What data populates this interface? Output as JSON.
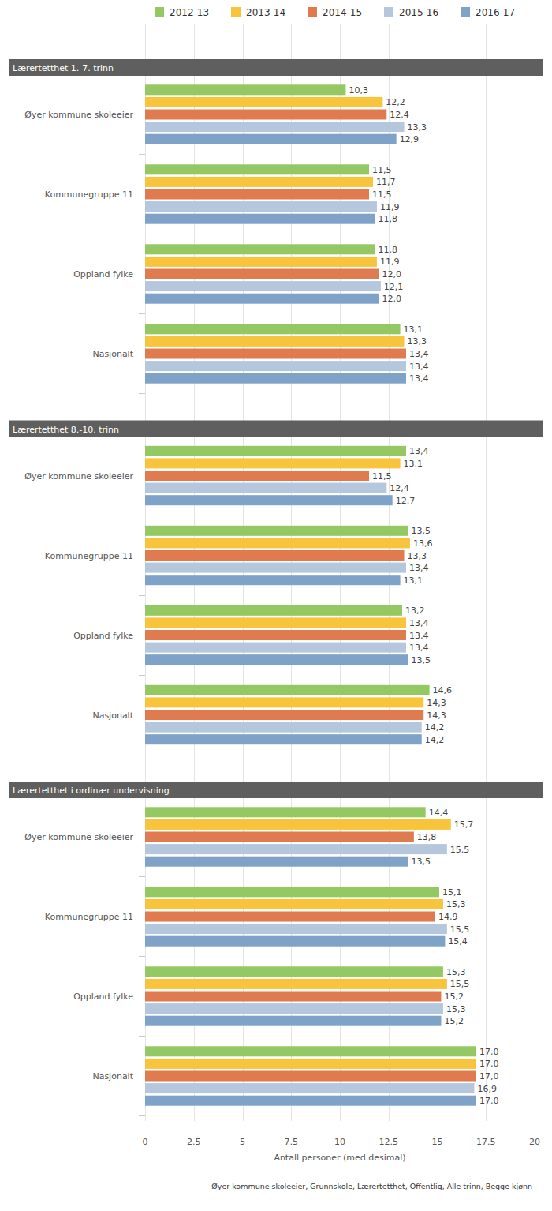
{
  "chart_data": {
    "type": "bar",
    "orientation": "horizontal",
    "data_labels": true,
    "grid": true,
    "legend": "top",
    "panels": [
      "Lærertetthet 1.-7. trinn",
      "Lærertetthet 8.-10. trinn",
      "Lærertetthet i ordinær undervisning"
    ],
    "categories": [
      "Øyer kommune skoleeier",
      "Kommunegruppe 11",
      "Oppland fylke",
      "Nasjonalt",
      "Øyer kommune skoleeier",
      "Kommunegruppe 11",
      "Oppland fylke",
      "Nasjonalt",
      "Øyer kommune skoleeier",
      "Kommunegruppe 11",
      "Oppland fylke",
      "Nasjonalt"
    ],
    "series": [
      {
        "name": "2012-13",
        "color": "#94c862",
        "values": [
          10.3,
          11.5,
          11.8,
          13.1,
          13.4,
          13.5,
          13.2,
          14.6,
          14.4,
          15.1,
          15.3,
          17.0
        ],
        "value_labels": [
          "10,3",
          "11,5",
          "11,8",
          "13,1",
          "13,4",
          "13,5",
          "13,2",
          "14,6",
          "14,4",
          "15,1",
          "15,3",
          "17,0"
        ]
      },
      {
        "name": "2013-14",
        "color": "#f8c43c",
        "values": [
          12.2,
          11.7,
          11.9,
          13.3,
          13.1,
          13.6,
          13.4,
          14.3,
          15.7,
          15.3,
          15.5,
          17.0
        ],
        "value_labels": [
          "12,2",
          "11,7",
          "11,9",
          "13,3",
          "13,1",
          "13,6",
          "13,4",
          "14,3",
          "15,7",
          "15,3",
          "15,5",
          "17,0"
        ]
      },
      {
        "name": "2014-15",
        "color": "#e07b4f",
        "values": [
          12.4,
          11.5,
          12.0,
          13.4,
          11.5,
          13.3,
          13.4,
          14.3,
          13.8,
          14.9,
          15.2,
          17.0
        ],
        "value_labels": [
          "12,4",
          "11,5",
          "12,0",
          "13,4",
          "11,5",
          "13,3",
          "13,4",
          "14,3",
          "13,8",
          "14,9",
          "15,2",
          "17,0"
        ]
      },
      {
        "name": "2015-16",
        "color": "#b4c7dc",
        "values": [
          13.3,
          11.9,
          12.1,
          13.4,
          12.4,
          13.4,
          13.4,
          14.2,
          15.5,
          15.5,
          15.3,
          16.9
        ],
        "value_labels": [
          "13,3",
          "11,9",
          "12,1",
          "13,4",
          "12,4",
          "13,4",
          "13,4",
          "14,2",
          "15,5",
          "15,5",
          "15,3",
          "16,9"
        ]
      },
      {
        "name": "2016-17",
        "color": "#7ea2c8",
        "values": [
          12.9,
          11.8,
          12.0,
          13.4,
          12.7,
          13.1,
          13.5,
          14.2,
          13.5,
          15.4,
          15.2,
          17.0
        ],
        "value_labels": [
          "12,9",
          "11,8",
          "12,0",
          "13,4",
          "12,7",
          "13,1",
          "13,5",
          "14,2",
          "13,5",
          "15,4",
          "15,2",
          "17,0"
        ]
      }
    ],
    "xlim": [
      0,
      20
    ],
    "xticks": [
      0,
      2.5,
      5,
      7.5,
      10,
      12.5,
      15,
      17.5,
      20
    ],
    "x_label": "Antall personer (med desimal)",
    "caption": "Øyer kommune skoleeier, Grunnskole, Lærertetthet, Offentlig, Alle trinn, Begge kjønn"
  }
}
